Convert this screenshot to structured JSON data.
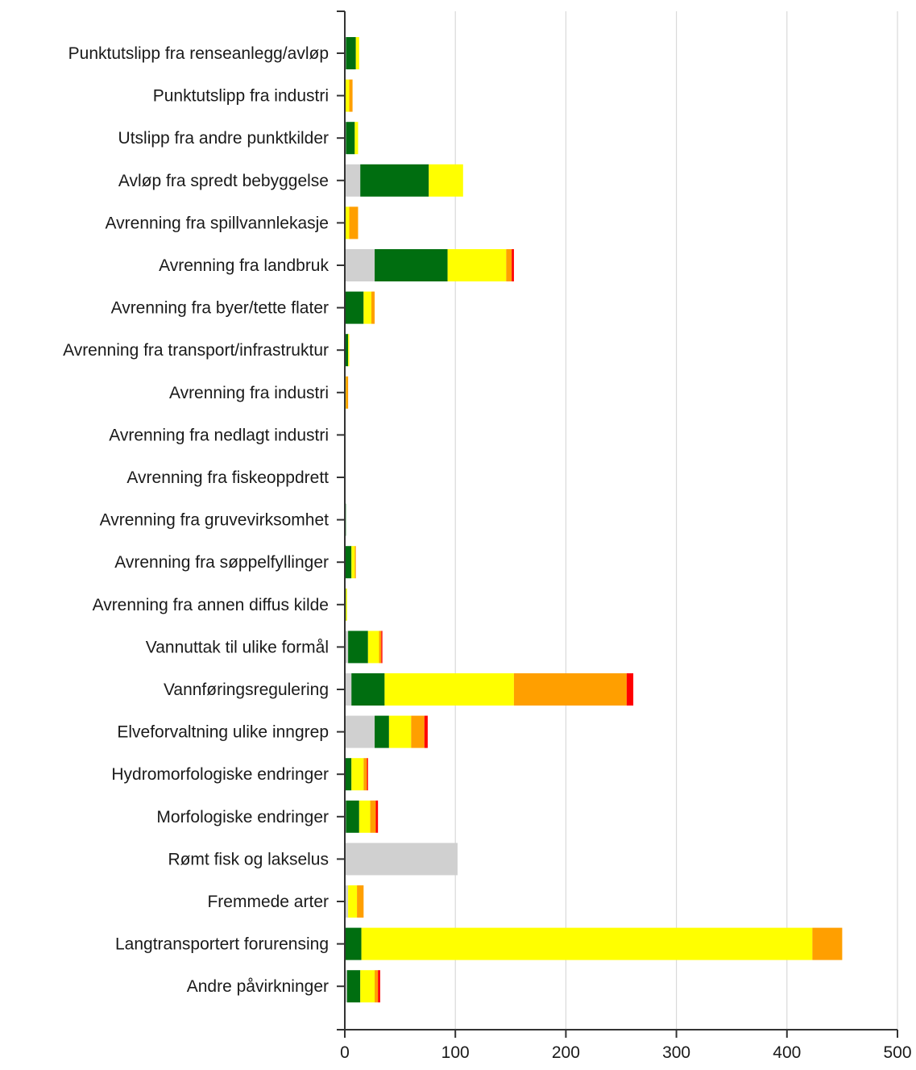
{
  "chart_data": {
    "type": "bar",
    "orientation": "horizontal",
    "stacked": true,
    "title": "",
    "xlabel": "",
    "ylabel": "",
    "xlim": [
      0,
      500
    ],
    "x_ticks": [
      0,
      100,
      200,
      300,
      400,
      500
    ],
    "grid": "vertical gridlines",
    "legend": "none",
    "categories": [
      "Punktutslipp fra renseanlegg/avløp",
      "Punktutslipp fra industri",
      "Utslipp fra andre punktkilder",
      "Avløp fra spredt bebyggelse",
      "Avrenning fra spillvannlekasje",
      "Avrenning fra landbruk",
      "Avrenning fra byer/tette flater",
      "Avrenning fra transport/infrastruktur",
      "Avrenning fra industri",
      "Avrenning fra nedlagt industri",
      "Avrenning fra fiskeoppdrett",
      "Avrenning fra gruvevirksomhet",
      "Avrenning fra søppelfyllinger",
      "Avrenning fra annen diffus kilde",
      "Vannuttak til ulike formål",
      "Vannføringsregulering",
      "Elveforvaltning ulike inngrep",
      "Hydromorfologiske endringer",
      "Morfologiske endringer",
      "Rømt fisk og lakselus",
      "Fremmede arter",
      "Langtransportert forurensing",
      "Andre påvirkninger"
    ],
    "series": [
      {
        "color": "#d0d0d0",
        "values": [
          1,
          0,
          1,
          14,
          0,
          27,
          0,
          0,
          0,
          0,
          0,
          0,
          0,
          0,
          3,
          6,
          27,
          0,
          1,
          102,
          3,
          0,
          2
        ]
      },
      {
        "color": "#006e10",
        "values": [
          9,
          0,
          8,
          62,
          0,
          66,
          17,
          3,
          0,
          0,
          0,
          1,
          6,
          1,
          18,
          30,
          13,
          6,
          12,
          0,
          0,
          15,
          12
        ]
      },
      {
        "color": "#ffff00",
        "values": [
          3,
          4,
          3,
          31,
          4,
          53,
          7,
          1,
          1,
          0,
          0,
          0,
          3,
          1,
          10,
          117,
          20,
          11,
          10,
          0,
          8,
          408,
          13
        ]
      },
      {
        "color": "#ff9f00",
        "values": [
          0,
          3,
          0,
          0,
          8,
          5,
          3,
          0,
          2,
          0,
          0,
          0,
          1,
          0,
          2,
          102,
          12,
          3,
          5,
          0,
          6,
          27,
          3
        ]
      },
      {
        "color": "#ff0000",
        "values": [
          0,
          0,
          0,
          0,
          0,
          2,
          0,
          0,
          0,
          0,
          0,
          0,
          0,
          0,
          1,
          6,
          3,
          1,
          2,
          0,
          0,
          0,
          2
        ]
      }
    ]
  }
}
